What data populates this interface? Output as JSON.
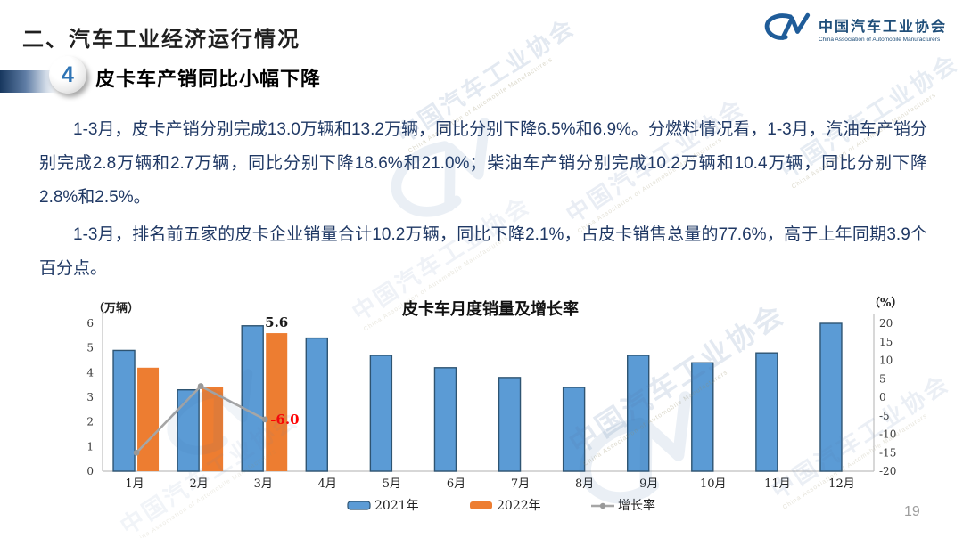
{
  "slide": {
    "section_title": "二、汽车工业经济运行情况",
    "badge_number": "4",
    "heading": "皮卡车产销同比小幅下降",
    "paragraph1": "1-3月，皮卡产销分别完成13.0万辆和13.2万辆，同比分别下降6.5%和6.9%。分燃料情况看，1-3月，汽油车产销分别完成2.8万辆和2.7万辆，同比分别下降18.6%和21.0%；柴油车产销分别完成10.2万辆和10.4万辆，同比分别下降2.8%和2.5%。",
    "paragraph2": "1-3月，排名前五家的皮卡企业销量合计10.2万辆，同比下降2.1%，占皮卡销售总量的77.6%，高于上年同期3.9个百分点。",
    "page_number": "19"
  },
  "logo": {
    "name_zh": "中国汽车工业协会",
    "name_en": "China Association of Automobile Manufacturers"
  },
  "watermark": {
    "zh": "中国汽车工业协会",
    "en": "China Association of Automobile Manufacturers"
  },
  "chart_data": {
    "type": "bar",
    "title": "皮卡车月度销量及增长率",
    "left_axis_label": "（万辆）",
    "right_axis_label": "（%）",
    "categories": [
      "1月",
      "2月",
      "3月",
      "4月",
      "5月",
      "6月",
      "7月",
      "8月",
      "9月",
      "10月",
      "11月",
      "12月"
    ],
    "series": [
      {
        "name": "2021年",
        "type": "bar",
        "color": "#5b9bd5",
        "border": "#2e5472",
        "values": [
          4.9,
          3.3,
          5.9,
          5.4,
          4.7,
          4.2,
          3.8,
          3.4,
          4.7,
          4.4,
          4.8,
          6.0
        ]
      },
      {
        "name": "2022年",
        "type": "bar",
        "color": "#ed7d31",
        "border": "none",
        "values": [
          4.2,
          3.4,
          5.6,
          null,
          null,
          null,
          null,
          null,
          null,
          null,
          null,
          null
        ]
      },
      {
        "name": "增长率",
        "type": "line",
        "color": "#a6a6a6",
        "axis": "right",
        "values": [
          -15,
          3,
          -6,
          null,
          null,
          null,
          null,
          null,
          null,
          null,
          null,
          null
        ]
      }
    ],
    "left_ylim": [
      0,
      6
    ],
    "left_ticks": [
      0,
      1,
      2,
      3,
      4,
      5,
      6
    ],
    "right_ylim": [
      -20,
      20
    ],
    "right_ticks": [
      20,
      15,
      10,
      5,
      0,
      -5,
      -10,
      -15,
      -20
    ],
    "grid": false,
    "legend_position": "bottom",
    "annotations": [
      {
        "text": "5.6",
        "color": "#1a1a1a",
        "series": "2022年",
        "category_index": 2,
        "placement": "above-bar"
      },
      {
        "text": "-6.0",
        "color": "#ff0000",
        "series": "增长率",
        "category_index": 2,
        "placement": "right-of-point"
      }
    ]
  }
}
